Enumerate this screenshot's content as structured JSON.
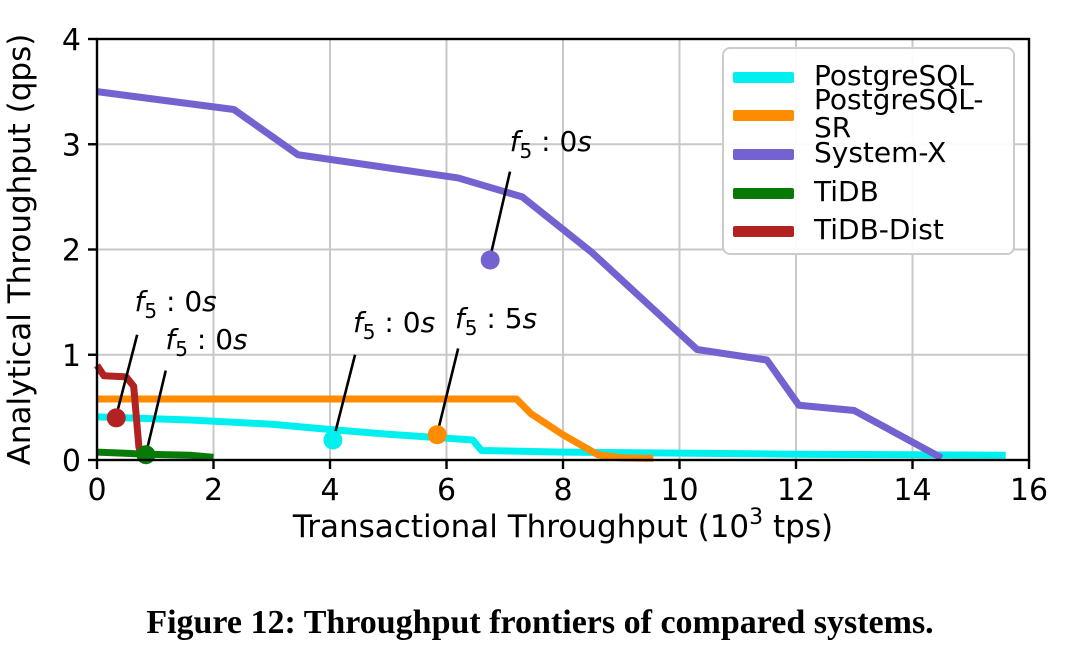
{
  "figure": {
    "caption": "Figure 12: Throughput frontiers of compared systems.",
    "background_color": "#ffffff"
  },
  "chart_data": {
    "type": "line",
    "title": "",
    "xlabel": "Transactional Throughput (10^3 tps)",
    "xlabel_parts": {
      "prefix": "Transactional Throughput (10",
      "superscript": "3",
      "suffix": " tps)"
    },
    "ylabel": "Analytical Throughput (qps)",
    "xlim": [
      0,
      16
    ],
    "ylim": [
      0,
      4
    ],
    "xticks": [
      0,
      2,
      4,
      6,
      8,
      10,
      12,
      14,
      16
    ],
    "yticks": [
      0,
      1,
      2,
      3,
      4
    ],
    "grid": true,
    "grid_color": "#c8c8c8",
    "axis_color": "#000000",
    "legend_position": "upper-right",
    "legend_border_color": "#cccccc",
    "series": [
      {
        "name": "PostgreSQL",
        "color": "#00f0f0",
        "points": [
          [
            0,
            0.41
          ],
          [
            1.6,
            0.38
          ],
          [
            3,
            0.34
          ],
          [
            4,
            0.29
          ],
          [
            5,
            0.245
          ],
          [
            6.45,
            0.19
          ],
          [
            6.6,
            0.09
          ],
          [
            8,
            0.075
          ],
          [
            10,
            0.065
          ],
          [
            12,
            0.055
          ],
          [
            14,
            0.05
          ],
          [
            15.6,
            0.045
          ]
        ],
        "marker_point": [
          4.05,
          0.19
        ]
      },
      {
        "name": "PostgreSQL-SR",
        "color": "#ff8c00",
        "points": [
          [
            0,
            0.58
          ],
          [
            7.2,
            0.58
          ],
          [
            7.45,
            0.44
          ],
          [
            8.0,
            0.24
          ],
          [
            8.6,
            0.05
          ],
          [
            9.0,
            0.02
          ],
          [
            9.55,
            0.015
          ]
        ],
        "marker_point": [
          5.84,
          0.24
        ]
      },
      {
        "name": "System-X",
        "color": "#7363d1",
        "points": [
          [
            0,
            3.5
          ],
          [
            2.35,
            3.33
          ],
          [
            3.45,
            2.9
          ],
          [
            6.2,
            2.68
          ],
          [
            7.3,
            2.5
          ],
          [
            8.5,
            1.97
          ],
          [
            10.3,
            1.05
          ],
          [
            11.5,
            0.95
          ],
          [
            12.05,
            0.52
          ],
          [
            13,
            0.47
          ],
          [
            14.5,
            0.02
          ]
        ],
        "marker_point": [
          6.75,
          1.9
        ]
      },
      {
        "name": "TiDB",
        "color": "#077a07",
        "points": [
          [
            0,
            0.075
          ],
          [
            0.85,
            0.055
          ],
          [
            1.6,
            0.045
          ],
          [
            2.0,
            0.025
          ]
        ],
        "marker_point": [
          0.84,
          0.05
        ]
      },
      {
        "name": "TiDB-Dist",
        "color": "#b22222",
        "points": [
          [
            0,
            0.9
          ],
          [
            0.12,
            0.8
          ],
          [
            0.5,
            0.79
          ],
          [
            0.63,
            0.7
          ],
          [
            0.72,
            0.12
          ],
          [
            0.78,
            0.03
          ],
          [
            0.9,
            0.015
          ]
        ],
        "marker_point": [
          0.33,
          0.4
        ]
      }
    ],
    "annotations": [
      {
        "label": "f5 : 0s",
        "series": "TiDB-Dist",
        "fvar": "f",
        "fsub": "5",
        "mid": " : ",
        "num": "0",
        "unit": "s",
        "text_xy": [
          1.35,
          1.5
        ],
        "line": [
          [
            0.69,
            1.19
          ],
          [
            0.33,
            0.42
          ]
        ]
      },
      {
        "label": "f5 : 0s",
        "series": "TiDB",
        "fvar": "f",
        "fsub": "5",
        "mid": " : ",
        "num": "0",
        "unit": "s",
        "text_xy": [
          1.88,
          1.14
        ],
        "line": [
          [
            1.18,
            0.85
          ],
          [
            0.85,
            0.08
          ]
        ]
      },
      {
        "label": "f5 : 0s",
        "series": "PostgreSQL",
        "fvar": "f",
        "fsub": "5",
        "mid": " : ",
        "num": "0",
        "unit": "s",
        "text_xy": [
          5.1,
          1.3
        ],
        "line": [
          [
            4.43,
            1.0
          ],
          [
            4.08,
            0.24
          ]
        ]
      },
      {
        "label": "f5 : 5s",
        "series": "PostgreSQL-SR",
        "fvar": "f",
        "fsub": "5",
        "mid": " : ",
        "num": "5",
        "unit": "s",
        "text_xy": [
          6.85,
          1.34
        ],
        "line": [
          [
            6.2,
            1.06
          ],
          [
            5.85,
            0.27
          ]
        ]
      },
      {
        "label": "f5 : 0s",
        "series": "System-X",
        "fvar": "f",
        "fsub": "5",
        "mid": " : ",
        "num": "0",
        "unit": "s",
        "text_xy": [
          7.79,
          3.02
        ],
        "line": [
          [
            7.09,
            2.74
          ],
          [
            6.76,
            1.95
          ]
        ]
      }
    ]
  }
}
